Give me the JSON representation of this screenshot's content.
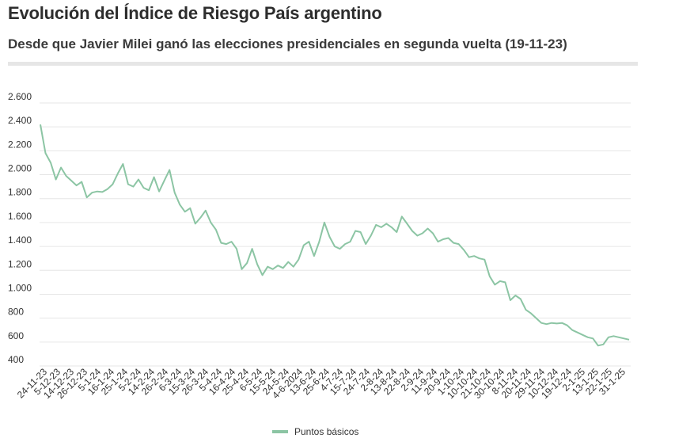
{
  "header": {
    "title": "Evolución del Índice de Riesgo País argentino",
    "subtitle": "Desde que Javier Milei ganó las elecciones presidenciales en segunda vuelta (19-11-23)"
  },
  "colors": {
    "line": "#8cc5a4",
    "grid": "#e6e6e6",
    "text": "#333333"
  },
  "chart_data": {
    "type": "line",
    "title": "Evolución del Índice de Riesgo País argentino",
    "subtitle": "Desde que Javier Milei ganó las elecciones presidenciales en segunda vuelta (19-11-23)",
    "ylim": [
      400,
      2600
    ],
    "yticks": [
      400,
      600,
      800,
      1000,
      1200,
      1400,
      1600,
      1800,
      2000,
      2200,
      2400,
      2600
    ],
    "ytick_labels": [
      "400",
      "600",
      "800",
      "1.000",
      "1.200",
      "1.400",
      "1.600",
      "1.800",
      "2.000",
      "2.200",
      "2.400",
      "2.600"
    ],
    "xtick_labels": [
      "24-11-23",
      "5-12-23",
      "14-12-23",
      "26-12-23",
      "5-1-24",
      "16-1-24",
      "25-1-24",
      "5-2-24",
      "14-2-24",
      "26-2-24",
      "6-3-24",
      "15-3-24",
      "26-3-24",
      "5-4-24",
      "16-4-24",
      "25-4-24",
      "6-5-24",
      "15-5-24",
      "24-5-24",
      "4-6-2024",
      "13-6-24",
      "25-6-24",
      "4-7-24",
      "15-7-24",
      "24-7-24",
      "2-8-24",
      "13-8-24",
      "22-8-24",
      "2-9-24",
      "11-9-24",
      "20-9-24",
      "1-10-24",
      "10-10-24",
      "21-10-24",
      "30-10-24",
      "8-11-24",
      "20-11-24",
      "29-11-24",
      "10-12-24",
      "19-12-24",
      "2-1-25",
      "13-1-25",
      "22-1-25",
      "31-1-25"
    ],
    "grid": true,
    "legend_position": "bottom-center",
    "series": [
      {
        "name": "Puntos básicos",
        "values": [
          2420,
          2180,
          2100,
          1960,
          2060,
          1990,
          1950,
          1910,
          1940,
          1810,
          1850,
          1860,
          1855,
          1880,
          1920,
          2010,
          2090,
          1920,
          1900,
          1960,
          1890,
          1870,
          1980,
          1860,
          1950,
          2040,
          1850,
          1750,
          1690,
          1720,
          1590,
          1640,
          1700,
          1600,
          1540,
          1430,
          1420,
          1440,
          1380,
          1210,
          1260,
          1380,
          1250,
          1160,
          1230,
          1210,
          1240,
          1220,
          1270,
          1230,
          1290,
          1410,
          1440,
          1320,
          1440,
          1600,
          1480,
          1400,
          1380,
          1420,
          1440,
          1530,
          1520,
          1420,
          1490,
          1580,
          1560,
          1590,
          1560,
          1520,
          1650,
          1590,
          1530,
          1490,
          1510,
          1550,
          1510,
          1440,
          1460,
          1470,
          1430,
          1420,
          1370,
          1310,
          1320,
          1300,
          1290,
          1150,
          1080,
          1110,
          1100,
          950,
          990,
          960,
          870,
          840,
          800,
          760,
          750,
          760,
          755,
          760,
          740,
          700,
          680,
          660,
          640,
          630,
          570,
          580,
          640,
          650,
          640,
          630,
          620
        ]
      }
    ]
  }
}
